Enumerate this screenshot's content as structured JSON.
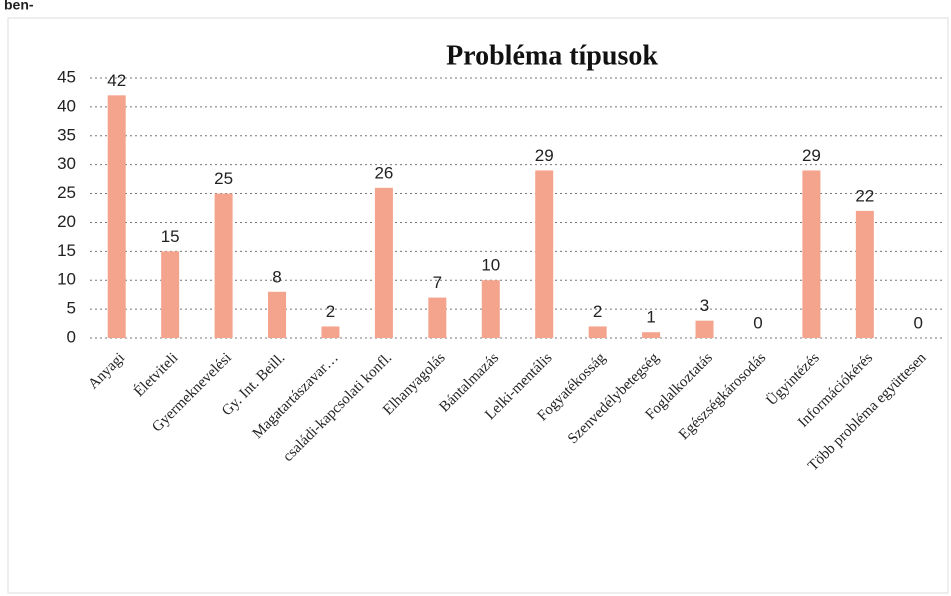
{
  "caption": "ben-",
  "chart_data": {
    "type": "bar",
    "title": "Probléma típusok",
    "categories": [
      "Anyagi",
      "Életviteli",
      "Gyermeknevelési",
      "Gy. Int. Beill.",
      "Magatartászavar…",
      "családi-kapcsolati konfl.",
      "Elhanyagolás",
      "Bántalmazás",
      "Lelki-mentális",
      "Fogyatékosság",
      "Szenvedélybetegség",
      "Foglalkoztatás",
      "Egészségkárosodás",
      "Ügyintézés",
      "Információkérés",
      "Több probléma együttesen"
    ],
    "values": [
      42,
      15,
      25,
      8,
      2,
      26,
      7,
      10,
      29,
      2,
      1,
      3,
      0,
      29,
      22,
      0
    ],
    "color": "#f4a48c",
    "ylim": [
      0,
      45
    ],
    "yticks": [
      0,
      5,
      10,
      15,
      20,
      25,
      30,
      35,
      40,
      45
    ],
    "grid": true
  }
}
